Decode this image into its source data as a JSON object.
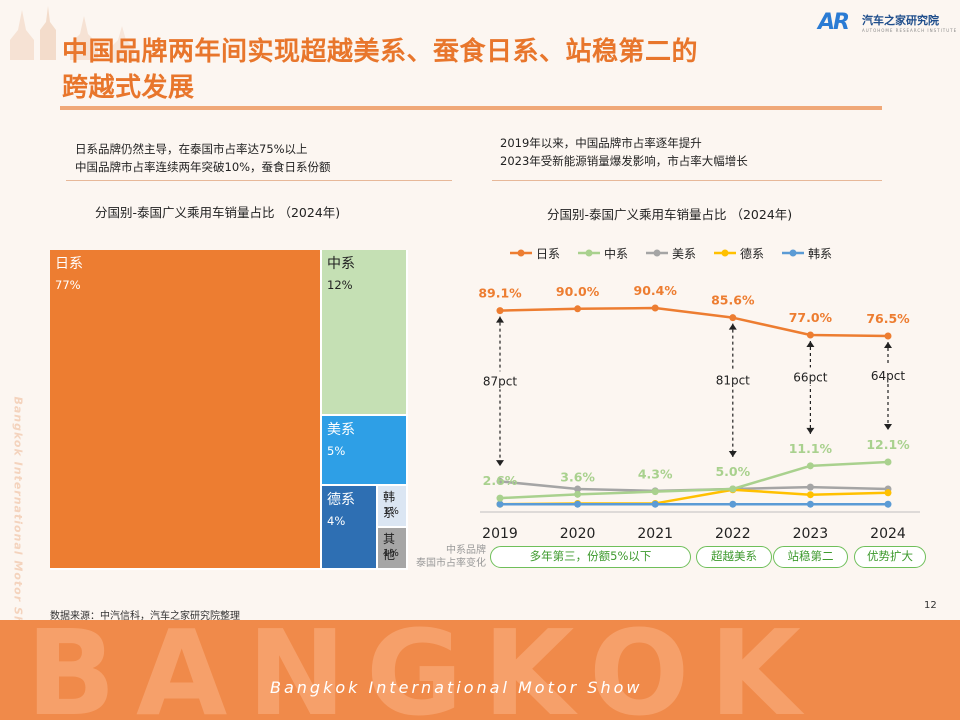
{
  "header": {
    "title_line1": "中国品牌两年间实现超越美系、蚕食日系、站稳第二的",
    "title_line2": "跨越式发展",
    "logo_mark": "AR",
    "logo_text": "汽车之家研究院",
    "logo_subtext": "AUTOHOME RESEARCH INSTITUTE"
  },
  "left_panel": {
    "note_line1": "日系品牌仍然主导，在泰国市占率达75%以上",
    "note_line2": "中国品牌市占率连续两年突破10%，蚕食日系份额",
    "chart_title": "分国别-泰国广义乘用车销量占比 （2024年)"
  },
  "right_panel": {
    "note_line1": "2019年以来，中国品牌市占率逐年提升",
    "note_line2": "2023年受新能源销量爆发影响，市占率大幅增长",
    "chart_title": "分国别-泰国广义乘用车销量占比 （2024年)",
    "row_label_line1": "中系品牌",
    "row_label_line2": "泰国市占率变化",
    "stage_pills": [
      "多年第三，份额5%以下",
      "超越美系",
      "站稳第二",
      "优势扩大"
    ]
  },
  "side_label": "Bangkok International Motor Show",
  "source": "数据来源：中汽信科，汽车之家研究院整理",
  "page_number": "12",
  "footer": {
    "big_word": "BANGKOK",
    "subtitle": "Bangkok International Motor Show"
  },
  "colors": {
    "japan": "#ed7d31",
    "china": "#a9d18e",
    "usa": "#a5a5a5",
    "germany": "#ffc000",
    "korea": "#5b9bd5",
    "accent": "#e8762c"
  },
  "chart_data": [
    {
      "type": "treemap",
      "title": "分国别-泰国广义乘用车销量占比 （2024年)",
      "items": [
        {
          "name": "日系",
          "label": "77%",
          "value": 77,
          "color": "#ed7d31"
        },
        {
          "name": "中系",
          "label": "12%",
          "value": 12,
          "color": "#c5e0b4"
        },
        {
          "name": "美系",
          "label": "5%",
          "value": 5,
          "color": "#2e9fe6"
        },
        {
          "name": "德系",
          "label": "4%",
          "value": 4,
          "color": "#2e6fb3"
        },
        {
          "name": "韩系",
          "label": "1%",
          "value": 1,
          "color": "#dbe6f3"
        },
        {
          "name": "其他",
          "label": "1%",
          "value": 1,
          "color": "#a6a6a6"
        }
      ]
    },
    {
      "type": "line",
      "title": "分国别-泰国广义乘用车销量占比 （2024年)",
      "x": [
        "2019",
        "2020",
        "2021",
        "2022",
        "2023",
        "2024"
      ],
      "legend_position": "top",
      "series": [
        {
          "name": "日系",
          "color": "#ed7d31",
          "values": [
            89.1,
            90.0,
            90.4,
            85.6,
            77.0,
            76.5
          ],
          "labels": [
            "89.1%",
            "90.0%",
            "90.4%",
            "85.6%",
            "77.0%",
            "76.5%"
          ]
        },
        {
          "name": "中系",
          "color": "#a9d18e",
          "values": [
            2.6,
            3.6,
            4.3,
            5.0,
            11.1,
            12.1
          ],
          "labels": [
            "2.6%",
            "3.6%",
            "4.3%",
            "5.0%",
            "11.1%",
            "12.1%"
          ]
        },
        {
          "name": "美系",
          "color": "#a5a5a5",
          "values": [
            7.0,
            5.0,
            4.5,
            5.0,
            5.5,
            5.0
          ]
        },
        {
          "name": "德系",
          "color": "#ffc000",
          "values": [
            1.0,
            1.2,
            1.2,
            4.8,
            3.5,
            4.0
          ]
        },
        {
          "name": "韩系",
          "color": "#5b9bd5",
          "values": [
            1.0,
            1.0,
            1.0,
            1.0,
            1.0,
            1.0
          ]
        }
      ],
      "gap_annotations": [
        {
          "x": "2019",
          "label": "87pct"
        },
        {
          "x": "2022",
          "label": "81pct"
        },
        {
          "x": "2023",
          "label": "66pct"
        },
        {
          "x": "2024",
          "label": "64pct"
        }
      ]
    }
  ]
}
